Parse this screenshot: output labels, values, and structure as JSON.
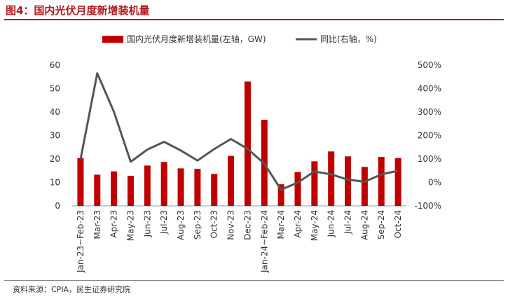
{
  "figure": {
    "title": "图4：国内光伏月度新增装机量",
    "source": "资料来源：CPIA，民生证券研究院"
  },
  "colors": {
    "bar": "#c00000",
    "line": "#555555",
    "accent": "#b3191d"
  },
  "chart_data": {
    "type": "bar+line",
    "categories": [
      "Jan-23~Feb-23",
      "Mar-23",
      "Apr-23",
      "May-23",
      "Jun-23",
      "Jul-23",
      "Aug-23",
      "Sep-23",
      "Oct-23",
      "Nov-23",
      "Dec-23",
      "Jan-24~Feb-24",
      "Mar-24",
      "Apr-24",
      "May-24",
      "Jun-24",
      "Jul-24",
      "Aug-24",
      "Sep-24",
      "Oct-24"
    ],
    "series": [
      {
        "name": "国内光伏月度新增装机量(左轴，GW)",
        "type": "bar",
        "axis": "left",
        "values": [
          20.4,
          13.3,
          14.7,
          12.8,
          17.2,
          18.7,
          16.0,
          15.8,
          13.6,
          21.3,
          53.0,
          36.7,
          9.2,
          14.4,
          19.0,
          23.2,
          21.1,
          16.6,
          20.9,
          20.4
        ]
      },
      {
        "name": "同比(右轴，%)",
        "type": "line",
        "axis": "right",
        "values": [
          98,
          465,
          301,
          88,
          140,
          173,
          136,
          93,
          142,
          185,
          143,
          80,
          -31,
          -1,
          47,
          34,
          12,
          3,
          34,
          50
        ]
      }
    ],
    "y_left": {
      "min": 0,
      "max": 60,
      "ticks": [
        "0",
        "10",
        "20",
        "30",
        "40",
        "50",
        "60"
      ]
    },
    "y_right": {
      "min": -100,
      "max": 500,
      "ticks": [
        "-100%",
        "0%",
        "100%",
        "200%",
        "300%",
        "400%",
        "500%"
      ]
    }
  }
}
